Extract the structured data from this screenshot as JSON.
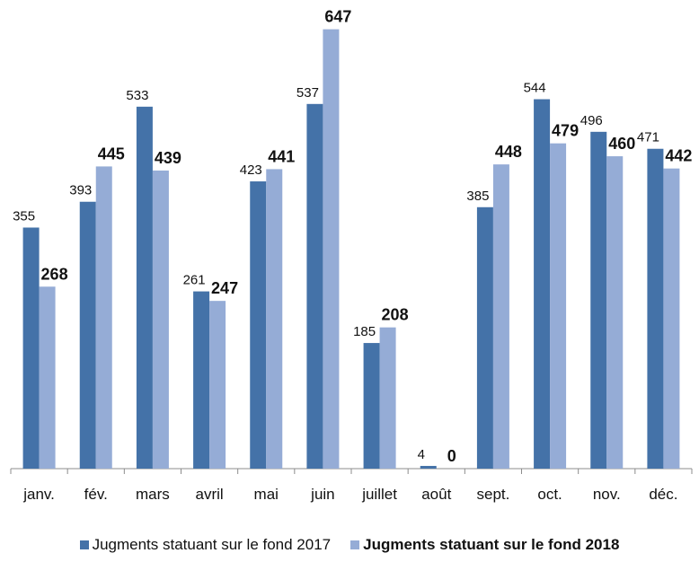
{
  "chart_data": {
    "type": "bar",
    "title": "",
    "xlabel": "",
    "ylabel": "",
    "categories": [
      "janv.",
      "fév.",
      "mars",
      "avril",
      "mai",
      "juin",
      "juillet",
      "août",
      "sept.",
      "oct.",
      "nov.",
      "déc."
    ],
    "series": [
      {
        "name": "Jugments statuant sur le fond 2017",
        "color": "#4472a8",
        "label_style": "normal",
        "values": [
          355,
          393,
          533,
          261,
          423,
          537,
          185,
          4,
          385,
          544,
          496,
          471
        ]
      },
      {
        "name": "Jugments statuant sur le fond 2018",
        "color": "#95acd6",
        "label_style": "bold",
        "values": [
          268,
          445,
          439,
          247,
          441,
          647,
          208,
          0,
          448,
          479,
          460,
          442
        ]
      }
    ],
    "ylim": [
      0,
      700
    ],
    "grid": false,
    "y_axis_visible": false,
    "legend_position": "bottom"
  }
}
